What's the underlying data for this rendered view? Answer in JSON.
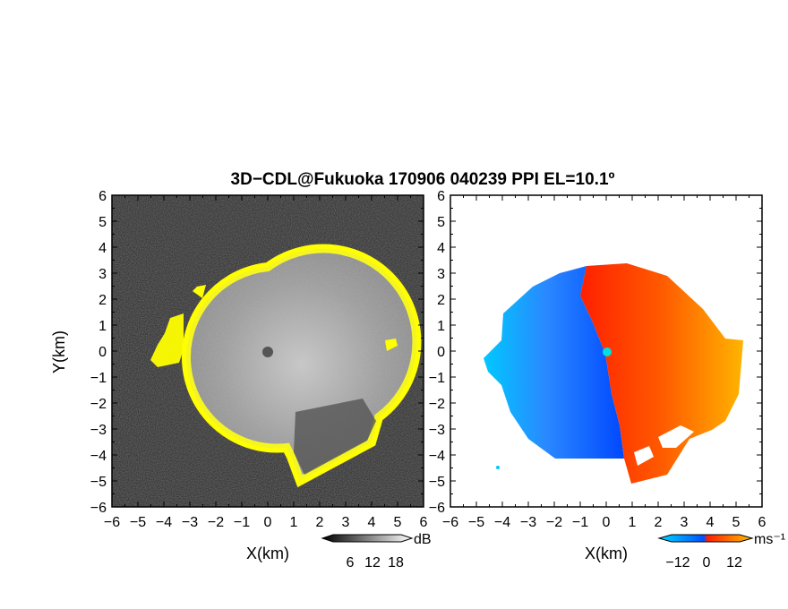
{
  "chart_data": [
    {
      "type": "heatmap",
      "panel": "left",
      "title": "3D−CDL@Fukuoka 170906 040239 PPI EL=10.1º",
      "xlabel": "X(km)",
      "ylabel": "Y(km)",
      "xlim": [
        -6,
        6
      ],
      "ylim": [
        -6,
        6
      ],
      "x_ticks": [
        "−6",
        "−5",
        "−4",
        "−3",
        "−2",
        "−1",
        "0",
        "1",
        "2",
        "3",
        "4",
        "5",
        "6"
      ],
      "y_ticks": [
        "6",
        "5",
        "4",
        "3",
        "2",
        "1",
        "0",
        "−1",
        "−2",
        "−3",
        "−4",
        "−5",
        "−6"
      ],
      "field": "signal-to-noise ratio",
      "colorbar": {
        "unit": "dB",
        "ticks": [
          "6",
          "12",
          "18"
        ],
        "range": [
          0,
          24
        ],
        "colors": [
          "#000000",
          "#ffffff"
        ]
      },
      "echo_radius_km": 3.4,
      "ring_color": "#ffff00"
    },
    {
      "type": "heatmap",
      "panel": "right",
      "xlabel": "X(km)",
      "xlim": [
        -6,
        6
      ],
      "ylim": [
        -6,
        6
      ],
      "x_ticks": [
        "−6",
        "−5",
        "−4",
        "−3",
        "−2",
        "−1",
        "0",
        "1",
        "2",
        "3",
        "4",
        "5",
        "6"
      ],
      "y_ticks": [
        "6",
        "5",
        "4",
        "3",
        "2",
        "1",
        "0",
        "−1",
        "−2",
        "−3",
        "−4",
        "−5",
        "−6"
      ],
      "field": "Doppler velocity",
      "colorbar": {
        "unit": "ms⁻¹",
        "ticks": [
          "−12",
          "0",
          "12"
        ],
        "range": [
          -16,
          16
        ],
        "colors": [
          "#00c8ff",
          "#0050ff",
          "#ff2000",
          "#ffc000"
        ]
      },
      "echo_radius_km": 3.4
    }
  ]
}
